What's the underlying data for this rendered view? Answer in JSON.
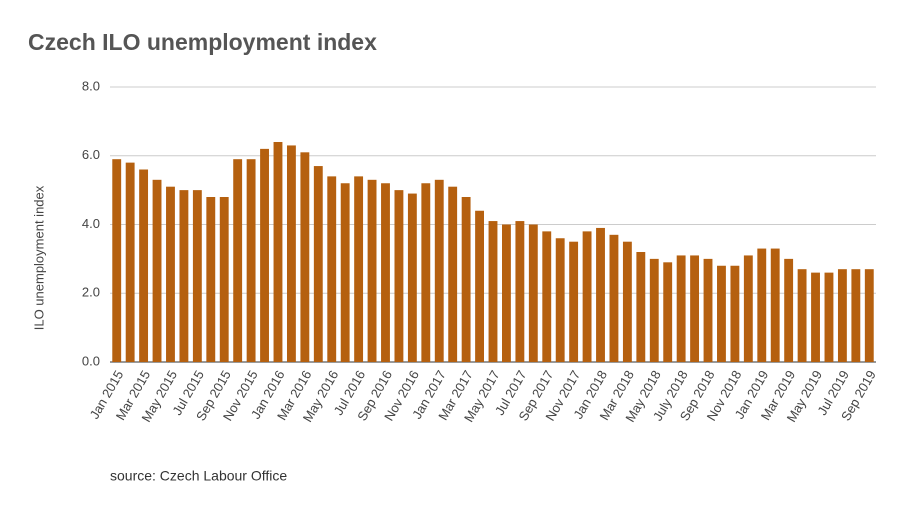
{
  "chart_data": {
    "type": "bar",
    "title": "Czech ILO unemployment index",
    "ylabel": "ILO unemployment index",
    "source": "source: Czech Labour Office",
    "color": "#b5600f",
    "grid": true,
    "categories": [
      "Jan 2015",
      null,
      "Mar 2015",
      null,
      "May 2015",
      null,
      "Jul 2015",
      null,
      "Sep 2015",
      null,
      "Nov 2015",
      null,
      "Jan 2016",
      null,
      "Mar 2016",
      null,
      "May 2016",
      null,
      "Jul 2016",
      null,
      "Sep 2016",
      null,
      "Nov 2016",
      null,
      "Jan 2017",
      null,
      "Mar 2017",
      null,
      "May 2017",
      null,
      "Jul 2017",
      null,
      "Sep 2017",
      null,
      "Nov 2017",
      null,
      "Jan 2018",
      null,
      "Mar 2018",
      null,
      "May 2018",
      null,
      "July 2018",
      null,
      "Sep 2018",
      null,
      "Nov 2018",
      null,
      "Jan 2019",
      null,
      "Mar 2019",
      null,
      "May 2019",
      null,
      "Jul 2019",
      null,
      "Sep 2019"
    ],
    "values": [
      5.9,
      5.8,
      5.6,
      5.3,
      5.1,
      5.0,
      5.0,
      4.8,
      4.8,
      5.9,
      5.9,
      6.2,
      6.4,
      6.3,
      6.1,
      5.7,
      5.4,
      5.2,
      5.4,
      5.3,
      5.2,
      5.0,
      4.9,
      5.2,
      5.3,
      5.1,
      4.8,
      4.4,
      4.1,
      4.0,
      4.1,
      4.0,
      3.8,
      3.6,
      3.5,
      3.8,
      3.9,
      3.7,
      3.5,
      3.2,
      3.0,
      2.9,
      3.1,
      3.1,
      3.0,
      2.8,
      2.8,
      3.1,
      3.3,
      3.3,
      3.0,
      2.7,
      2.6,
      2.6,
      2.7,
      2.7,
      2.7
    ],
    "ylim": [
      0,
      8
    ],
    "yticks": [
      {
        "value": 0,
        "label": "0.0"
      },
      {
        "value": 2,
        "label": "2.0"
      },
      {
        "value": 4,
        "label": "4.0"
      },
      {
        "value": 6,
        "label": "6.0"
      },
      {
        "value": 8,
        "label": "8.0"
      }
    ]
  }
}
